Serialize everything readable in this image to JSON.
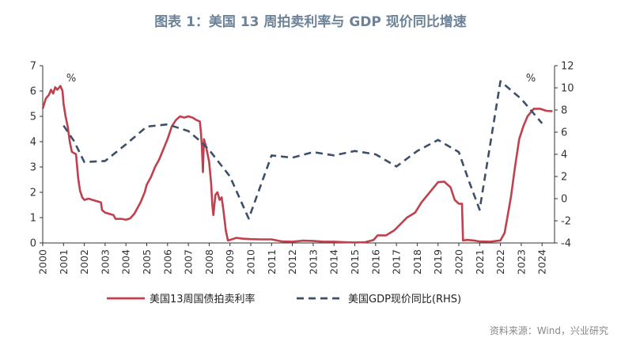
{
  "chart_data": {
    "type": "line",
    "title": "图表 1：美国 13 周拍卖利率与 GDP 现价同比增速",
    "source": "资料来源：Wind，兴业研究",
    "left_unit": "%",
    "right_unit": "%",
    "y_left": {
      "range": [
        0,
        7
      ],
      "ticks": [
        "0",
        "1",
        "2",
        "3",
        "4",
        "5",
        "6",
        "7"
      ]
    },
    "y_right": {
      "range": [
        -4,
        12
      ],
      "ticks": [
        "-4",
        "-2",
        "0",
        "2",
        "4",
        "6",
        "8",
        "10",
        "12"
      ]
    },
    "x": {
      "range": [
        2000,
        2024.6
      ],
      "ticks": [
        "2000",
        "2001",
        "2002",
        "2003",
        "2004",
        "2005",
        "2006",
        "2007",
        "2008",
        "2009",
        "2010",
        "2011",
        "2012",
        "2013",
        "2014",
        "2015",
        "2016",
        "2017",
        "2018",
        "2019",
        "2020",
        "2021",
        "2022",
        "2023",
        "2024"
      ]
    },
    "grid": false,
    "legend_position": "bottom",
    "series": [
      {
        "name": "美国13周国债拍卖利率",
        "axis": "left",
        "color": "#c0404e",
        "style": "solid",
        "points": [
          [
            2000.0,
            5.3
          ],
          [
            2000.15,
            5.7
          ],
          [
            2000.3,
            5.85
          ],
          [
            2000.4,
            6.05
          ],
          [
            2000.5,
            5.9
          ],
          [
            2000.6,
            6.15
          ],
          [
            2000.7,
            6.05
          ],
          [
            2000.85,
            6.2
          ],
          [
            2000.95,
            6.0
          ],
          [
            2001.0,
            5.5
          ],
          [
            2001.1,
            5.0
          ],
          [
            2001.2,
            4.6
          ],
          [
            2001.3,
            4.0
          ],
          [
            2001.4,
            3.6
          ],
          [
            2001.5,
            3.55
          ],
          [
            2001.6,
            3.5
          ],
          [
            2001.7,
            2.6
          ],
          [
            2001.75,
            2.3
          ],
          [
            2001.8,
            2.05
          ],
          [
            2001.9,
            1.8
          ],
          [
            2002.0,
            1.7
          ],
          [
            2002.2,
            1.75
          ],
          [
            2002.4,
            1.7
          ],
          [
            2002.6,
            1.65
          ],
          [
            2002.8,
            1.6
          ],
          [
            2002.85,
            1.3
          ],
          [
            2003.0,
            1.2
          ],
          [
            2003.2,
            1.15
          ],
          [
            2003.4,
            1.1
          ],
          [
            2003.5,
            0.95
          ],
          [
            2003.8,
            0.95
          ],
          [
            2004.0,
            0.92
          ],
          [
            2004.2,
            0.97
          ],
          [
            2004.4,
            1.15
          ],
          [
            2004.5,
            1.3
          ],
          [
            2004.7,
            1.6
          ],
          [
            2004.9,
            2.0
          ],
          [
            2005.0,
            2.3
          ],
          [
            2005.2,
            2.6
          ],
          [
            2005.4,
            3.0
          ],
          [
            2005.6,
            3.3
          ],
          [
            2005.8,
            3.7
          ],
          [
            2006.0,
            4.1
          ],
          [
            2006.2,
            4.6
          ],
          [
            2006.4,
            4.85
          ],
          [
            2006.6,
            5.0
          ],
          [
            2006.8,
            4.95
          ],
          [
            2007.0,
            5.0
          ],
          [
            2007.2,
            4.95
          ],
          [
            2007.4,
            4.85
          ],
          [
            2007.55,
            4.8
          ],
          [
            2007.6,
            4.4
          ],
          [
            2007.65,
            3.8
          ],
          [
            2007.7,
            2.8
          ],
          [
            2007.75,
            4.1
          ],
          [
            2007.85,
            3.8
          ],
          [
            2008.0,
            3.2
          ],
          [
            2008.1,
            2.3
          ],
          [
            2008.15,
            1.5
          ],
          [
            2008.2,
            1.1
          ],
          [
            2008.3,
            1.9
          ],
          [
            2008.4,
            2.0
          ],
          [
            2008.5,
            1.7
          ],
          [
            2008.6,
            1.8
          ],
          [
            2008.7,
            1.2
          ],
          [
            2008.8,
            0.5
          ],
          [
            2008.9,
            0.1
          ],
          [
            2009.0,
            0.12
          ],
          [
            2009.3,
            0.2
          ],
          [
            2009.6,
            0.17
          ],
          [
            2010.0,
            0.15
          ],
          [
            2010.5,
            0.14
          ],
          [
            2011.0,
            0.14
          ],
          [
            2011.5,
            0.06
          ],
          [
            2012.0,
            0.05
          ],
          [
            2012.5,
            0.09
          ],
          [
            2013.0,
            0.08
          ],
          [
            2013.5,
            0.05
          ],
          [
            2014.0,
            0.05
          ],
          [
            2014.5,
            0.03
          ],
          [
            2015.0,
            0.02
          ],
          [
            2015.5,
            0.03
          ],
          [
            2015.9,
            0.12
          ],
          [
            2016.1,
            0.3
          ],
          [
            2016.5,
            0.3
          ],
          [
            2016.9,
            0.5
          ],
          [
            2017.2,
            0.75
          ],
          [
            2017.5,
            1.0
          ],
          [
            2017.9,
            1.2
          ],
          [
            2018.2,
            1.6
          ],
          [
            2018.5,
            1.9
          ],
          [
            2018.8,
            2.2
          ],
          [
            2019.0,
            2.4
          ],
          [
            2019.3,
            2.42
          ],
          [
            2019.6,
            2.2
          ],
          [
            2019.8,
            1.7
          ],
          [
            2020.0,
            1.55
          ],
          [
            2020.15,
            1.55
          ],
          [
            2020.2,
            0.1
          ],
          [
            2020.4,
            0.12
          ],
          [
            2020.7,
            0.1
          ],
          [
            2021.0,
            0.06
          ],
          [
            2021.5,
            0.05
          ],
          [
            2022.0,
            0.1
          ],
          [
            2022.2,
            0.4
          ],
          [
            2022.5,
            1.8
          ],
          [
            2022.7,
            3.0
          ],
          [
            2022.9,
            4.1
          ],
          [
            2023.1,
            4.6
          ],
          [
            2023.3,
            5.0
          ],
          [
            2023.6,
            5.3
          ],
          [
            2023.9,
            5.3
          ],
          [
            2024.2,
            5.22
          ],
          [
            2024.5,
            5.2
          ]
        ]
      },
      {
        "name": "美国GDP现价同比(RHS)",
        "axis": "right",
        "color": "#3d5069",
        "style": "dashed",
        "points": [
          [
            2001.0,
            6.6
          ],
          [
            2001.5,
            5.2
          ],
          [
            2002.0,
            3.3
          ],
          [
            2003.0,
            3.4
          ],
          [
            2004.0,
            4.9
          ],
          [
            2005.0,
            6.5
          ],
          [
            2006.0,
            6.7
          ],
          [
            2007.0,
            6.1
          ],
          [
            2007.5,
            5.3
          ],
          [
            2008.0,
            4.4
          ],
          [
            2009.0,
            2.0
          ],
          [
            2009.9,
            -1.8
          ],
          [
            2011.0,
            3.9
          ],
          [
            2012.0,
            3.7
          ],
          [
            2013.0,
            4.2
          ],
          [
            2014.0,
            3.9
          ],
          [
            2015.0,
            4.3
          ],
          [
            2016.0,
            4.0
          ],
          [
            2017.0,
            2.9
          ],
          [
            2018.0,
            4.3
          ],
          [
            2019.0,
            5.3
          ],
          [
            2020.0,
            4.2
          ],
          [
            2020.5,
            1.5
          ],
          [
            2021.0,
            -1.0
          ],
          [
            2022.0,
            10.6
          ],
          [
            2023.0,
            9.0
          ],
          [
            2024.0,
            6.8
          ]
        ]
      }
    ]
  }
}
